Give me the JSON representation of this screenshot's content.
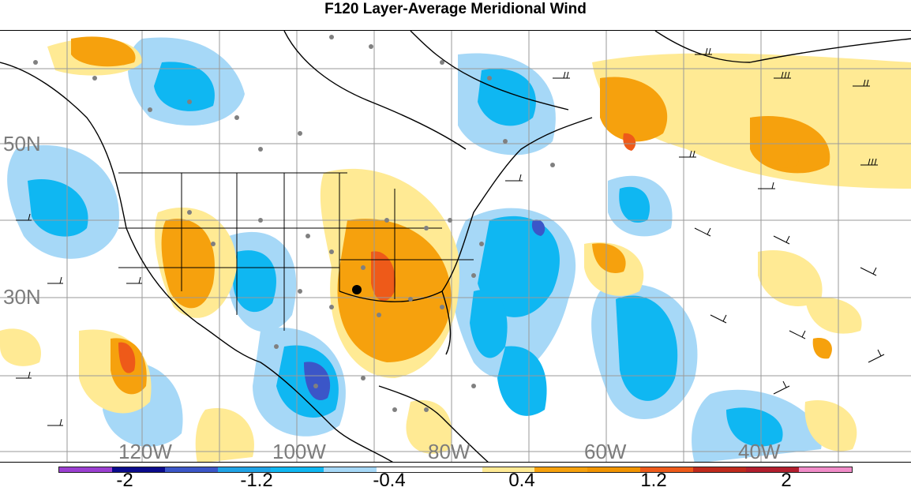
{
  "title": "F120 Layer-Average Meridional Wind",
  "map": {
    "lat_labels": [
      "50N",
      "30N"
    ],
    "lon_labels": [
      "120W",
      "100W",
      "80W",
      "60W",
      "40W"
    ]
  },
  "colorbar": {
    "colors": [
      "#9b3fd1",
      "#0a0a8c",
      "#3b56c8",
      "#1fa3e6",
      "#0fb7f2",
      "#a6d8f7",
      "#ffffff",
      "#ffffff",
      "#ffea94",
      "#f6a10d",
      "#f19400",
      "#ee5a19",
      "#c02a1c",
      "#b21e2d",
      "#f08cc8"
    ],
    "labels": [
      "-2",
      "-1.2",
      "-0.4",
      "0.4",
      "1.2",
      "2"
    ]
  }
}
